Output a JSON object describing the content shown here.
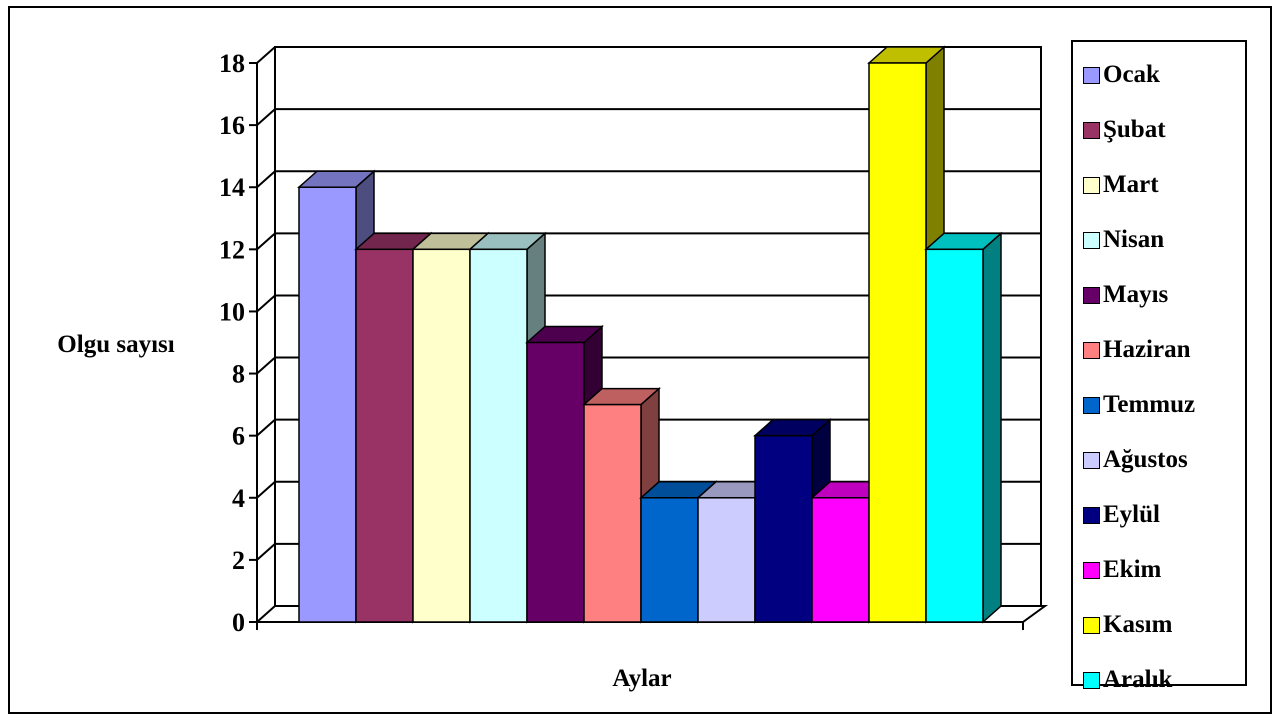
{
  "chart_data": {
    "type": "bar",
    "style": "3d",
    "xlabel": "Aylar",
    "ylabel": "Olgu sayısı",
    "ylim": [
      0,
      18
    ],
    "y_ticks": [
      "0",
      "2",
      "4",
      "6",
      "8",
      "10",
      "12",
      "14",
      "16",
      "18"
    ],
    "grid": true,
    "legend_position": "right",
    "categories": [
      "Ocak",
      "Şubat",
      "Mart",
      "Nisan",
      "Mayıs",
      "Haziran",
      "Temmuz",
      "Ağustos",
      "Eylül",
      "Ekim",
      "Kasım",
      "Aralık"
    ],
    "values": [
      14,
      12,
      12,
      12,
      9,
      7,
      4,
      4,
      6,
      4,
      18,
      12
    ],
    "colors": [
      "#9999FF",
      "#993366",
      "#FFFFCC",
      "#CCFFFF",
      "#660066",
      "#FF8080",
      "#0066CC",
      "#CCCCFF",
      "#000080",
      "#FF00FF",
      "#FFFF00",
      "#00FFFF"
    ]
  }
}
